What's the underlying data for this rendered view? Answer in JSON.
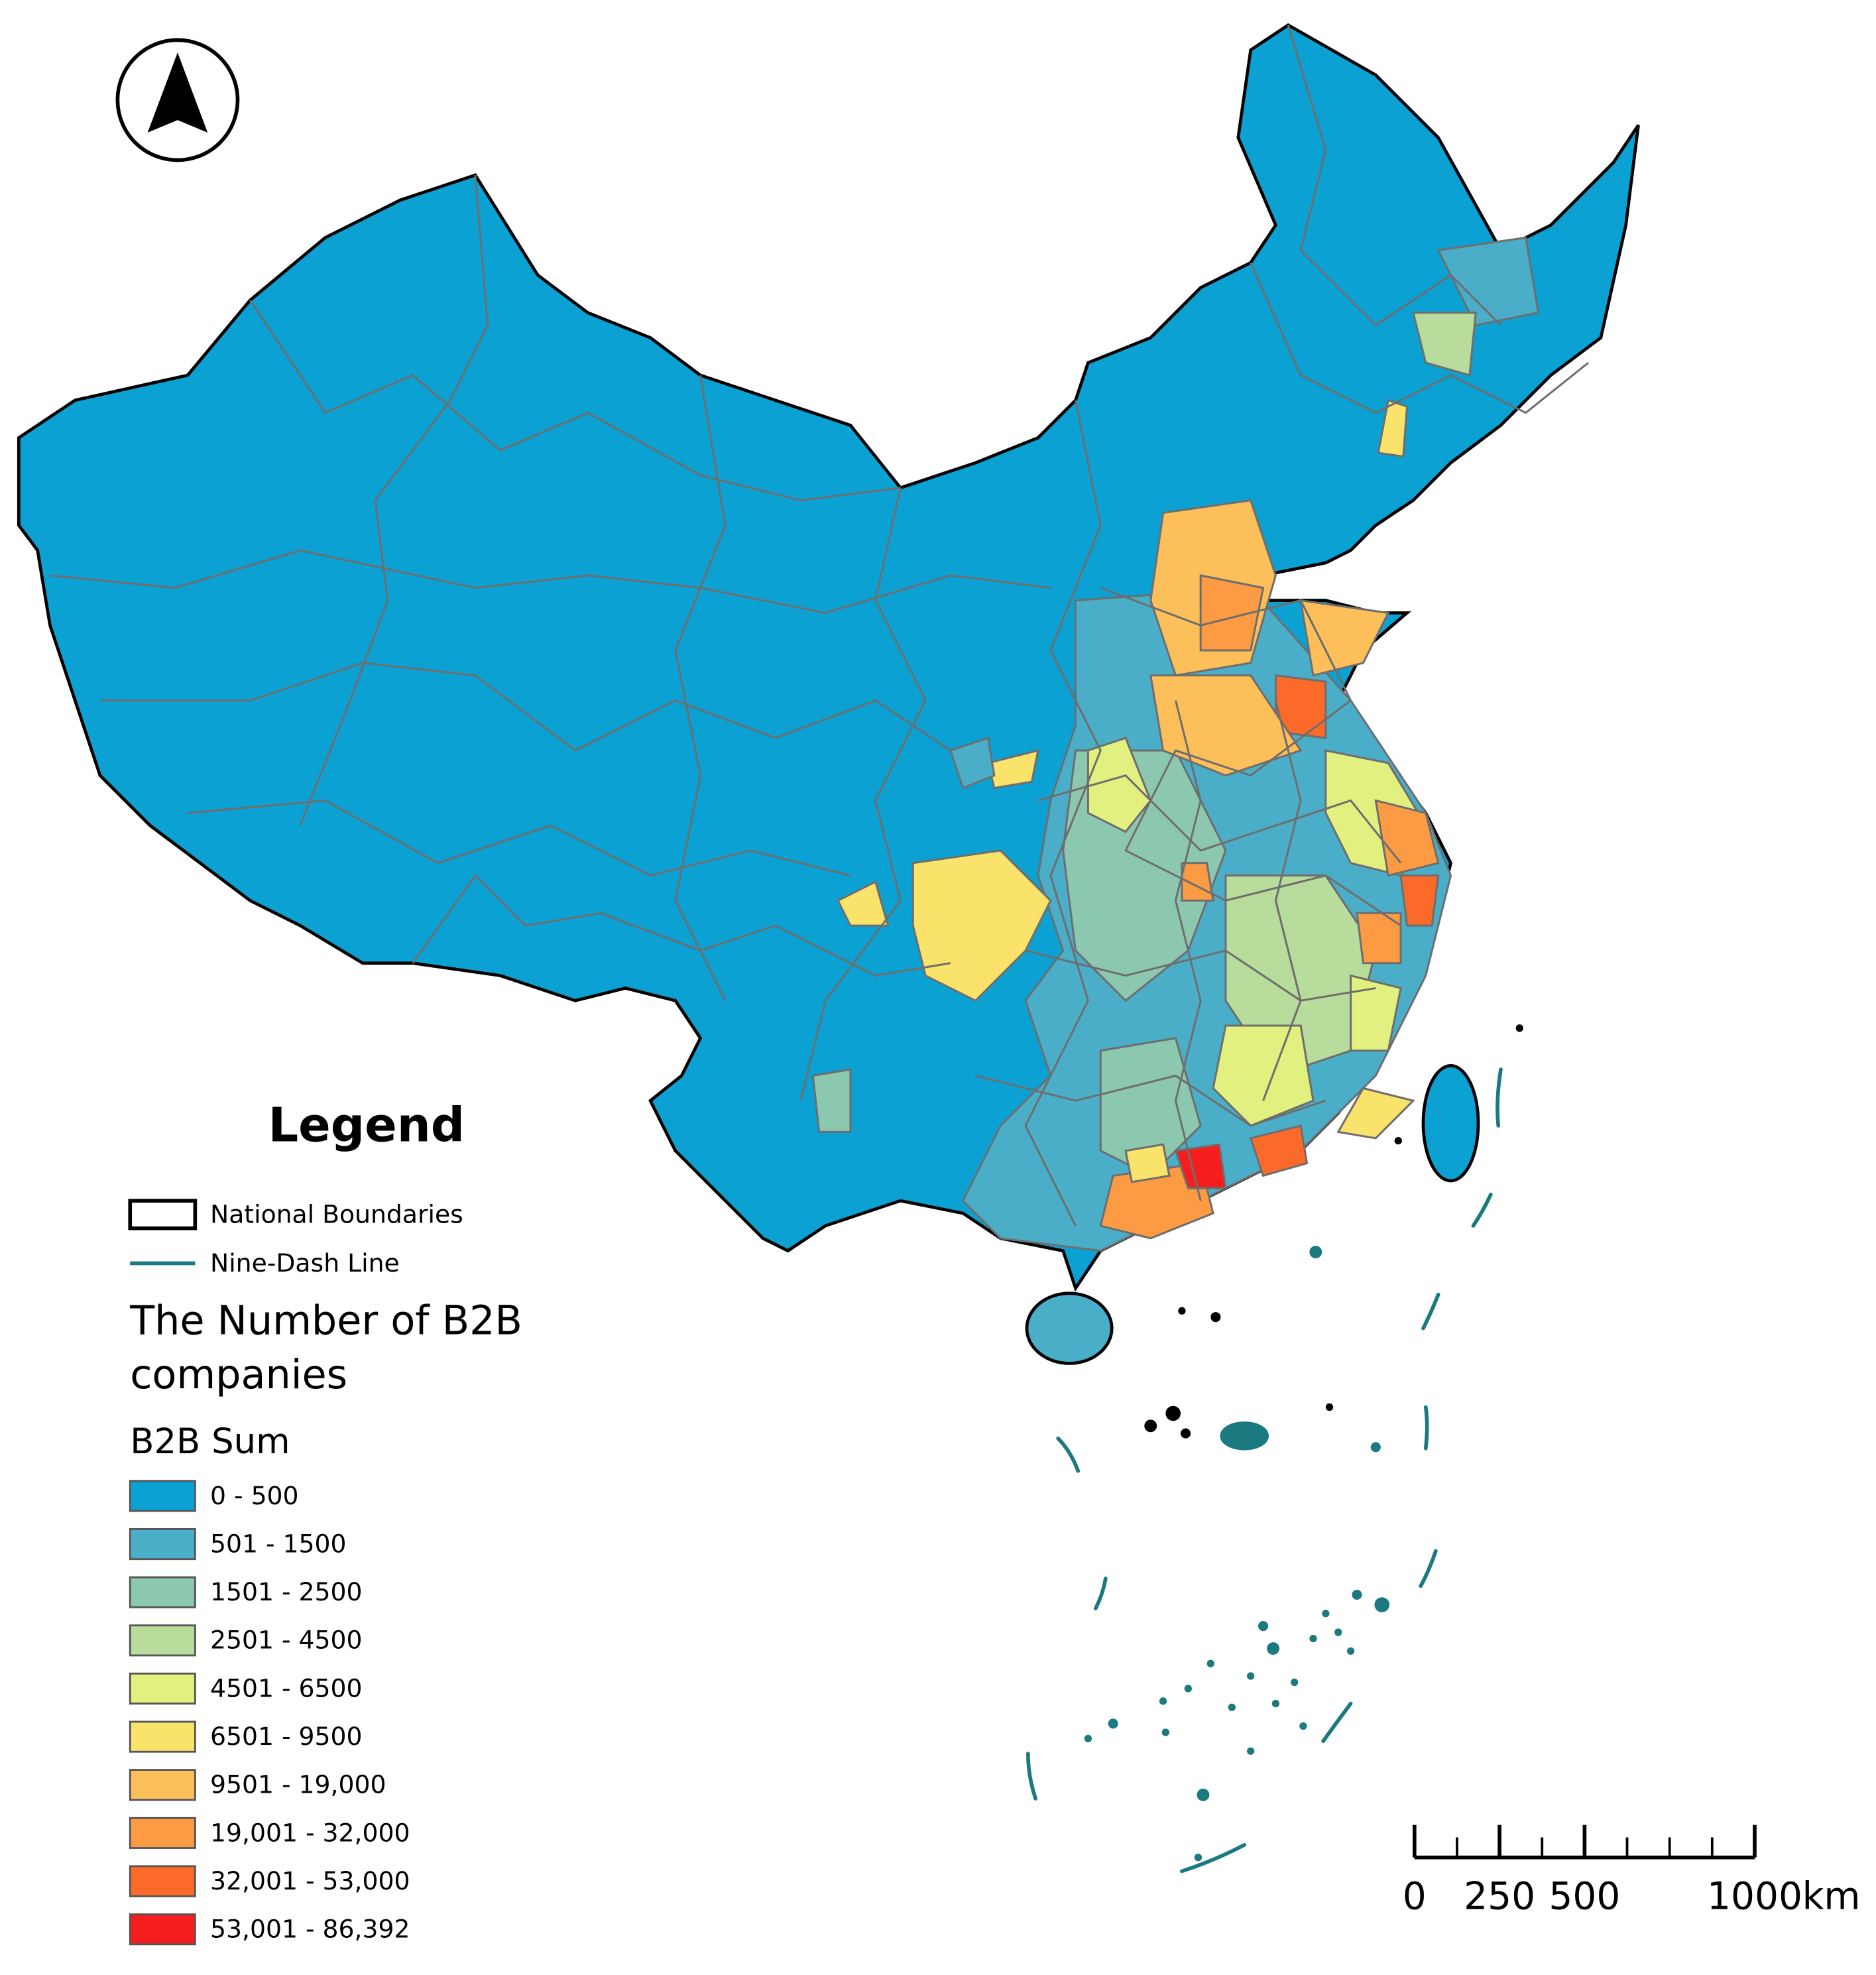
{
  "legend": {
    "title": "Legend",
    "items": [
      {
        "label": "National Boundaries",
        "color": "#000000"
      },
      {
        "label": "Nine-Dash Line",
        "color": "#1a7a80"
      }
    ],
    "layer_title": [
      "The Number of B2B",
      "companies"
    ],
    "field": "B2B Sum",
    "classes": [
      {
        "label": "0 - 500",
        "color": "#0ba1d3"
      },
      {
        "label": "501 - 1500",
        "color": "#4aaec8"
      },
      {
        "label": "1501 - 2500",
        "color": "#8cc8b0"
      },
      {
        "label": "2501 - 4500",
        "color": "#b7dc9b"
      },
      {
        "label": "4501 - 6500",
        "color": "#e2f07f"
      },
      {
        "label": "6501 - 9500",
        "color": "#fae36a"
      },
      {
        "label": "9501 - 19,000",
        "color": "#fdbf5a"
      },
      {
        "label": "19,001 - 32,000",
        "color": "#fd9b45"
      },
      {
        "label": "32,001 - 53,000",
        "color": "#fb6a28"
      },
      {
        "label": "53,001 - 86,392",
        "color": "#f51d1d"
      }
    ]
  },
  "scale_bar": {
    "ticks": [
      0,
      250,
      500,
      1000
    ],
    "unit": "km"
  }
}
